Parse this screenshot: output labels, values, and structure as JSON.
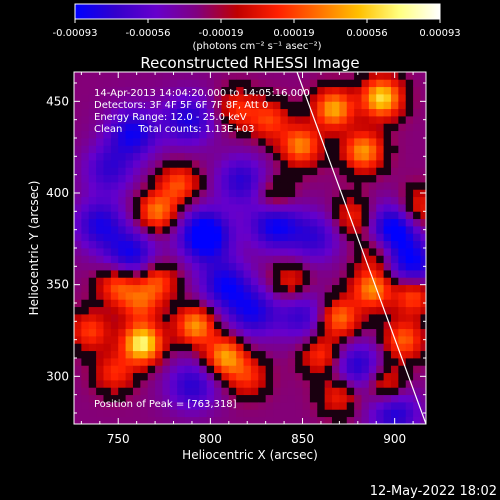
{
  "chart_data": {
    "type": "heatmap",
    "title": "Reconstructed RHESSI Image",
    "xlabel": "Heliocentric X (arcsec)",
    "ylabel": "Heliocentric Y (arcsec)",
    "xlim": [
      726,
      917
    ],
    "ylim": [
      274,
      466
    ],
    "x_ticks": [
      750,
      800,
      850,
      900
    ],
    "y_ticks": [
      300,
      350,
      400,
      450
    ],
    "colorbar": {
      "ticks": [
        "-0.00093",
        "-0.00056",
        "-0.00019",
        "0.00019",
        "0.00056",
        "0.00093"
      ],
      "range": [
        -0.00093,
        0.00093
      ],
      "unit_label": "(photons cm⁻² s⁻¹ asec⁻²)",
      "colormap": [
        "#0000ff",
        "#3300cc",
        "#6600cc",
        "#800080",
        "#c00000",
        "#ff2000",
        "#ff7000",
        "#ffc000",
        "#ffff80",
        "#ffffff"
      ]
    },
    "info_lines": [
      "14-Apr-2013 14:04:20.000 to 14:05:16.000",
      "Detectors: 3F 4F 5F 6F 7F 8F, Att 0",
      "Energy Range: 12.0 - 25.0 keV",
      "Clean     Total counts: 1.13E+03"
    ],
    "peak_label": "Position of Peak = [763,318]",
    "peak": [
      763,
      318
    ],
    "limb_line": [
      [
        847,
        466
      ],
      [
        917,
        274
      ]
    ],
    "hot_spots": [
      {
        "x": 763,
        "y": 318,
        "intensity": 1.0
      },
      {
        "x": 893,
        "y": 452,
        "intensity": 0.9
      },
      {
        "x": 867,
        "y": 446,
        "intensity": 0.75
      },
      {
        "x": 883,
        "y": 423,
        "intensity": 0.7
      },
      {
        "x": 792,
        "y": 328,
        "intensity": 0.7
      },
      {
        "x": 808,
        "y": 311,
        "intensity": 0.72
      },
      {
        "x": 849,
        "y": 426,
        "intensity": 0.65
      },
      {
        "x": 771,
        "y": 390,
        "intensity": 0.62
      },
      {
        "x": 783,
        "y": 405,
        "intensity": 0.5
      },
      {
        "x": 750,
        "y": 350,
        "intensity": 0.55
      },
      {
        "x": 771,
        "y": 352,
        "intensity": 0.5
      },
      {
        "x": 762,
        "y": 340,
        "intensity": 0.45
      },
      {
        "x": 735,
        "y": 325,
        "intensity": 0.45
      },
      {
        "x": 748,
        "y": 302,
        "intensity": 0.4
      },
      {
        "x": 870,
        "y": 332,
        "intensity": 0.62
      },
      {
        "x": 888,
        "y": 348,
        "intensity": 0.68
      },
      {
        "x": 910,
        "y": 345,
        "intensity": 0.6
      },
      {
        "x": 905,
        "y": 320,
        "intensity": 0.55
      },
      {
        "x": 860,
        "y": 312,
        "intensity": 0.45
      },
      {
        "x": 832,
        "y": 440,
        "intensity": 0.45
      },
      {
        "x": 815,
        "y": 446,
        "intensity": 0.4
      },
      {
        "x": 895,
        "y": 296,
        "intensity": 0.45
      },
      {
        "x": 870,
        "y": 290,
        "intensity": 0.4
      },
      {
        "x": 843,
        "y": 352,
        "intensity": 0.35
      },
      {
        "x": 835,
        "y": 398,
        "intensity": 0.35
      },
      {
        "x": 820,
        "y": 300,
        "intensity": 0.4
      },
      {
        "x": 878,
        "y": 387,
        "intensity": 0.4
      },
      {
        "x": 913,
        "y": 392,
        "intensity": 0.4
      },
      {
        "x": 890,
        "y": 368,
        "intensity": 0.35
      }
    ],
    "cold_spots": [
      {
        "x": 797,
        "y": 377,
        "intensity": 0.8
      },
      {
        "x": 835,
        "y": 383,
        "intensity": 0.6
      },
      {
        "x": 899,
        "y": 380,
        "intensity": 0.7
      },
      {
        "x": 910,
        "y": 360,
        "intensity": 0.6
      },
      {
        "x": 740,
        "y": 383,
        "intensity": 0.5
      },
      {
        "x": 757,
        "y": 366,
        "intensity": 0.55
      },
      {
        "x": 808,
        "y": 350,
        "intensity": 0.55
      },
      {
        "x": 823,
        "y": 335,
        "intensity": 0.5
      },
      {
        "x": 850,
        "y": 333,
        "intensity": 0.4
      },
      {
        "x": 788,
        "y": 440,
        "intensity": 0.5
      },
      {
        "x": 758,
        "y": 433,
        "intensity": 0.55
      },
      {
        "x": 817,
        "y": 407,
        "intensity": 0.45
      },
      {
        "x": 790,
        "y": 295,
        "intensity": 0.45
      },
      {
        "x": 880,
        "y": 305,
        "intensity": 0.5
      },
      {
        "x": 857,
        "y": 376,
        "intensity": 0.4
      },
      {
        "x": 745,
        "y": 413,
        "intensity": 0.4
      },
      {
        "x": 900,
        "y": 280,
        "intensity": 0.5
      }
    ]
  },
  "footer": {
    "datetime": "12-May-2022 18:02"
  }
}
